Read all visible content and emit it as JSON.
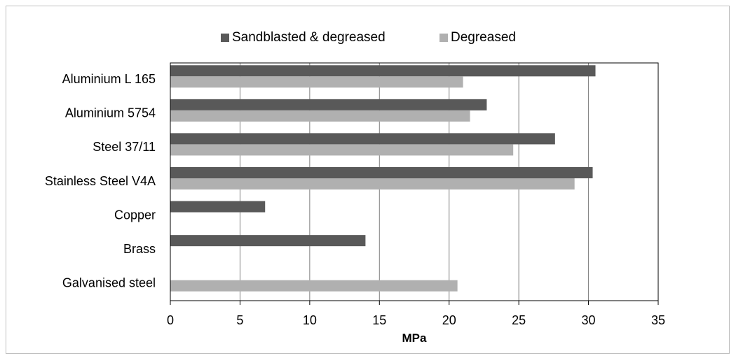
{
  "chart_data": {
    "type": "bar",
    "orientation": "horizontal",
    "title": "",
    "xlabel": "MPa",
    "ylabel": "",
    "xlim": [
      0,
      35
    ],
    "x_ticks": [
      "0",
      "5",
      "10",
      "15",
      "20",
      "25",
      "30",
      "35"
    ],
    "grid": "vertical",
    "legend_position": "top",
    "categories": [
      "Aluminium L 165",
      "Aluminium 5754",
      "Steel 37/11",
      "Stainless Steel V4A",
      "Copper",
      "Brass",
      "Galvanised steel"
    ],
    "series": [
      {
        "name": "Sandblasted & degreased",
        "color": "#595959",
        "values": [
          30.5,
          22.7,
          27.6,
          30.3,
          6.8,
          14.0,
          null
        ]
      },
      {
        "name": "Degreased",
        "color": "#b0b0b0",
        "values": [
          21.0,
          21.5,
          24.6,
          29.0,
          null,
          null,
          20.6
        ]
      }
    ]
  }
}
